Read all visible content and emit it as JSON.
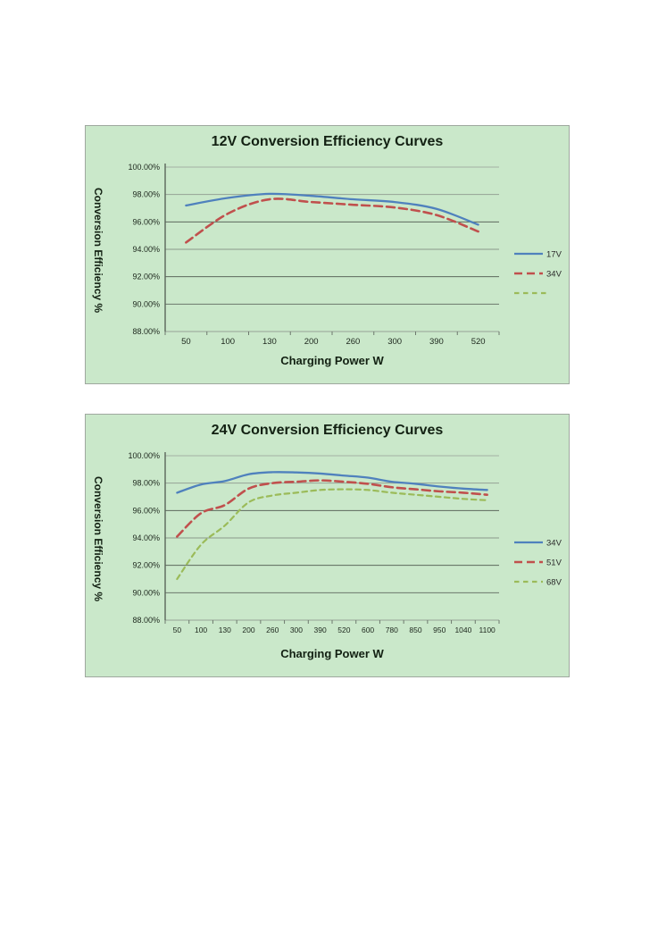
{
  "page": {
    "background": "#ffffff"
  },
  "chart_data": [
    {
      "type": "line",
      "title": "12V Conversion Efficiency Curves",
      "xlabel": "Charging Power W",
      "ylabel": "Conversion Efficiency %",
      "panel_bg": "#cae8ca",
      "ylim": [
        88,
        100
      ],
      "ytick_values": [
        100,
        98,
        96,
        94,
        92,
        90,
        88
      ],
      "ytick_labels": [
        "100.00%",
        "98.00%",
        "96.00%",
        "94.00%",
        "92.00%",
        "90.00%",
        "88.00%"
      ],
      "categories": [
        "50",
        "100",
        "130",
        "200",
        "260",
        "300",
        "390",
        "520"
      ],
      "grid": true,
      "legend_position": "right",
      "series": [
        {
          "name": "17V",
          "color": "#4f81bd",
          "dash": "solid",
          "values": [
            97.2,
            97.75,
            98.05,
            97.9,
            97.65,
            97.45,
            96.95,
            95.8
          ]
        },
        {
          "name": "34V",
          "color": "#c0504d",
          "dash": "long-dash",
          "values": [
            94.5,
            96.6,
            97.65,
            97.45,
            97.25,
            97.05,
            96.5,
            95.3
          ]
        },
        {
          "name": "",
          "color": "#9bbb59",
          "dash": "short-dash",
          "values": []
        }
      ]
    },
    {
      "type": "line",
      "title": "24V Conversion Efficiency Curves",
      "xlabel": "Charging Power W",
      "ylabel": "Conversion Efficiency %",
      "panel_bg": "#cae8ca",
      "ylim": [
        88,
        100
      ],
      "ytick_values": [
        100,
        98,
        96,
        94,
        92,
        90,
        88
      ],
      "ytick_labels": [
        "100.00%",
        "98.00%",
        "96.00%",
        "94.00%",
        "92.00%",
        "90.00%",
        "88.00%"
      ],
      "categories": [
        "50",
        "100",
        "130",
        "200",
        "260",
        "300",
        "390",
        "520",
        "600",
        "780",
        "850",
        "950",
        "1040",
        "1100"
      ],
      "grid": true,
      "legend_position": "right",
      "series": [
        {
          "name": "34V",
          "color": "#4f81bd",
          "dash": "solid",
          "values": [
            97.3,
            97.9,
            98.15,
            98.65,
            98.8,
            98.78,
            98.7,
            98.55,
            98.4,
            98.1,
            97.95,
            97.75,
            97.6,
            97.5
          ]
        },
        {
          "name": "51V",
          "color": "#c0504d",
          "dash": "long-dash",
          "values": [
            94.1,
            95.8,
            96.4,
            97.6,
            98.0,
            98.1,
            98.2,
            98.1,
            97.95,
            97.7,
            97.55,
            97.4,
            97.3,
            97.15
          ]
        },
        {
          "name": "68V",
          "color": "#9bbb59",
          "dash": "short-dash",
          "values": [
            91.0,
            93.5,
            94.9,
            96.6,
            97.1,
            97.3,
            97.5,
            97.55,
            97.5,
            97.3,
            97.15,
            97.0,
            96.85,
            96.75
          ]
        }
      ]
    }
  ]
}
